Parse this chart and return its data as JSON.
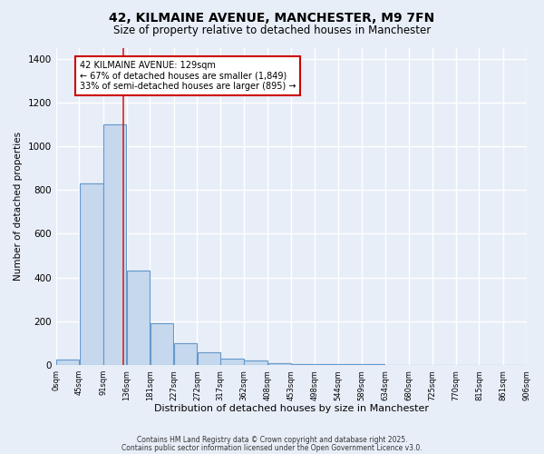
{
  "title": "42, KILMAINE AVENUE, MANCHESTER, M9 7FN",
  "subtitle": "Size of property relative to detached houses in Manchester",
  "xlabel": "Distribution of detached houses by size in Manchester",
  "ylabel": "Number of detached properties",
  "bar_color": "#c5d8ed",
  "bar_edge_color": "#6699cc",
  "background_color": "#e8eef8",
  "grid_color": "#ffffff",
  "bin_edges": [
    0,
    45,
    91,
    136,
    181,
    227,
    272,
    317,
    362,
    408,
    453,
    498,
    544,
    589,
    634,
    680,
    725,
    770,
    815,
    861,
    906
  ],
  "bin_labels": [
    "0sqm",
    "45sqm",
    "91sqm",
    "136sqm",
    "181sqm",
    "227sqm",
    "272sqm",
    "317sqm",
    "362sqm",
    "408sqm",
    "453sqm",
    "498sqm",
    "544sqm",
    "589sqm",
    "634sqm",
    "680sqm",
    "725sqm",
    "770sqm",
    "815sqm",
    "861sqm",
    "906sqm"
  ],
  "bar_heights": [
    25,
    830,
    1100,
    430,
    190,
    100,
    60,
    30,
    20,
    10,
    5,
    5,
    5,
    5,
    0,
    0,
    0,
    0,
    0,
    0
  ],
  "property_size": 129,
  "vline_color": "#dd2222",
  "annotation_line1": "42 KILMAINE AVENUE: 129sqm",
  "annotation_line2": "← 67% of detached houses are smaller (1,849)",
  "annotation_line3": "33% of semi-detached houses are larger (895) →",
  "annotation_box_color": "#ffffff",
  "annotation_box_edge": "#cc0000",
  "ylim": [
    0,
    1450
  ],
  "yticks": [
    0,
    200,
    400,
    600,
    800,
    1000,
    1200,
    1400
  ],
  "footnote1": "Contains HM Land Registry data © Crown copyright and database right 2025.",
  "footnote2": "Contains public sector information licensed under the Open Government Licence v3.0."
}
